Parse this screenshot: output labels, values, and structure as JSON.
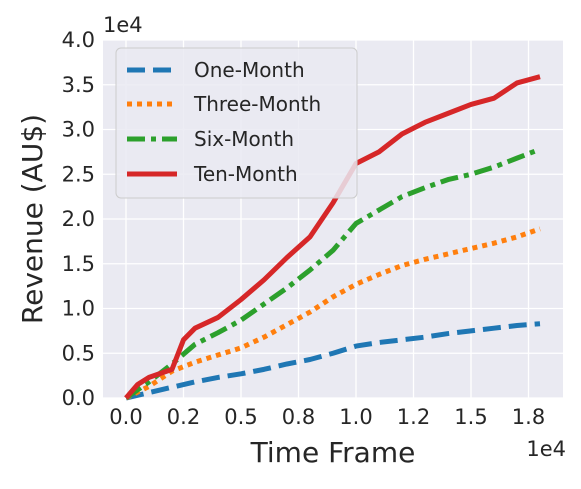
{
  "chart_data": {
    "type": "line",
    "title": "",
    "xlabel": "Time Frame",
    "ylabel": "Revenue (AU$)",
    "x_offset_text": "1e4",
    "y_offset_text": "1e4",
    "xlim": [
      -1000,
      19000
    ],
    "ylim": [
      0,
      40000
    ],
    "x_ticks": [
      0,
      2500,
      5000,
      7500,
      10000,
      12500,
      15000,
      17500
    ],
    "x_tick_labels": [
      "0.0",
      "0.2",
      "0.5",
      "0.8",
      "1.0",
      "1.2",
      "1.5",
      "1.8"
    ],
    "y_ticks": [
      0,
      5000,
      10000,
      15000,
      20000,
      25000,
      30000,
      35000,
      40000
    ],
    "y_tick_labels": [
      "0.0",
      "0.5",
      "1.0",
      "1.5",
      "2.0",
      "2.5",
      "3.0",
      "3.5",
      "4.0"
    ],
    "grid": true,
    "legend_position": "top-left",
    "background_color": "#eaeaf2",
    "series": [
      {
        "name": "One-Month",
        "color": "#1f77b4",
        "dash": "dashed",
        "x": [
          0,
          500,
          1000,
          2000,
          3000,
          4000,
          5000,
          6000,
          7000,
          8000,
          9000,
          10000,
          11000,
          12000,
          13000,
          14000,
          15000,
          16000,
          17000,
          18000
        ],
        "y": [
          0,
          300,
          600,
          1200,
          1800,
          2300,
          2700,
          3200,
          3800,
          4300,
          5000,
          5800,
          6200,
          6500,
          6800,
          7200,
          7500,
          7800,
          8100,
          8300
        ]
      },
      {
        "name": "Three-Month",
        "color": "#ff7f0e",
        "dash": "dotted",
        "x": [
          0,
          1000,
          2000,
          3000,
          4000,
          5000,
          6000,
          7000,
          8000,
          9000,
          10000,
          11000,
          12000,
          13000,
          14000,
          15000,
          16000,
          17000,
          18000
        ],
        "y": [
          0,
          1300,
          3000,
          4000,
          4800,
          5600,
          6800,
          8200,
          9600,
          11300,
          12700,
          13800,
          14800,
          15500,
          16100,
          16700,
          17300,
          18000,
          18900
        ]
      },
      {
        "name": "Six-Month",
        "color": "#2ca02c",
        "dash": "dashdot",
        "x": [
          0,
          1000,
          2000,
          3000,
          4000,
          5000,
          6000,
          7000,
          8000,
          9000,
          10000,
          11000,
          12000,
          13000,
          14000,
          15000,
          16000,
          17000,
          17800
        ],
        "y": [
          0,
          1800,
          3800,
          6000,
          7300,
          8700,
          10500,
          12300,
          14300,
          16500,
          19500,
          21000,
          22500,
          23500,
          24400,
          25000,
          25800,
          26800,
          27600
        ]
      },
      {
        "name": "Ten-Month",
        "color": "#d62728",
        "dash": "solid",
        "x": [
          0,
          500,
          1000,
          2000,
          2500,
          3000,
          4000,
          5000,
          6000,
          7000,
          8000,
          9000,
          10000,
          11000,
          12000,
          13000,
          14000,
          15000,
          16000,
          17000,
          18000
        ],
        "y": [
          0,
          1500,
          2300,
          3200,
          6500,
          7800,
          9000,
          11000,
          13200,
          15700,
          18000,
          21800,
          26200,
          27500,
          29500,
          30800,
          31800,
          32800,
          33500,
          35200,
          35900
        ]
      }
    ]
  }
}
